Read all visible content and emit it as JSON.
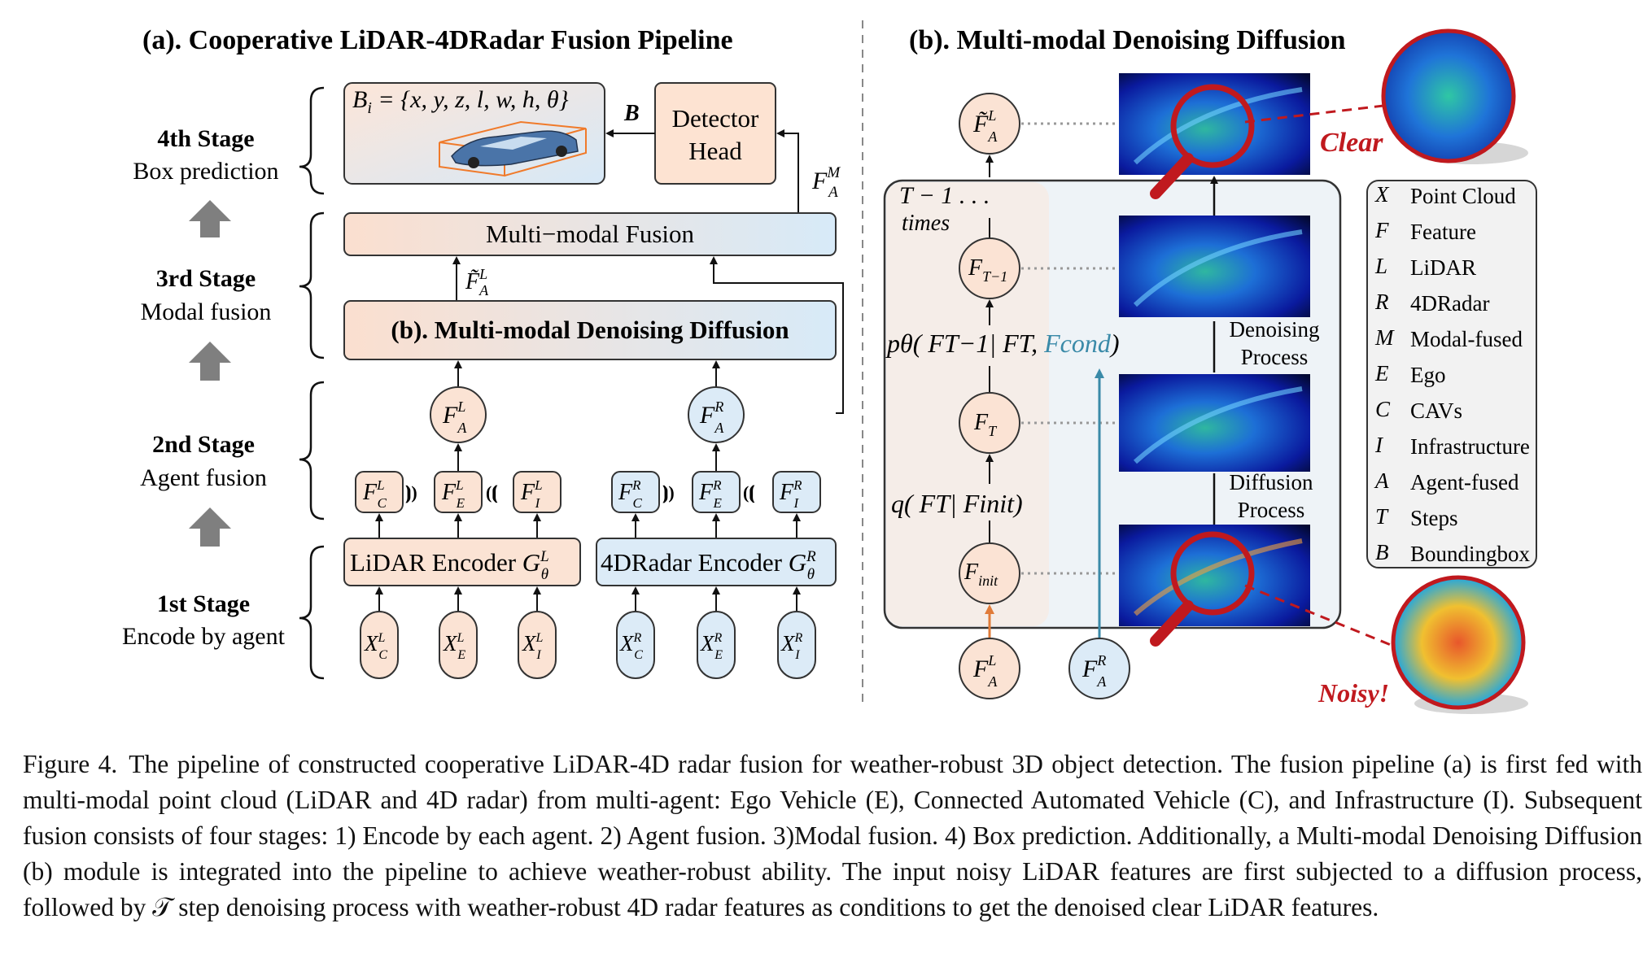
{
  "panel_a": {
    "title": "(a). Cooperative LiDAR-4DRadar Fusion Pipeline",
    "stages": [
      {
        "name": "4th Stage",
        "desc": "Box prediction"
      },
      {
        "name": "3rd Stage",
        "desc": "Modal fusion"
      },
      {
        "name": "2nd Stage",
        "desc": "Agent fusion"
      },
      {
        "name": "1st Stage",
        "desc": "Encode by agent"
      }
    ],
    "box_formula": "B",
    "box_formula_sub": "i",
    "box_formula_rest": " = {x, y, z, l, w, h, θ}",
    "box_arrow_label": "B",
    "detector_head_line1": "Detector",
    "detector_head_line2": "Head",
    "fused_label": "F",
    "fused_sup": "M",
    "fused_sub": "A",
    "multimodal_fusion": "Multi−modal Fusion",
    "diffusion_module": "(b). Multi-modal Denoising Diffusion",
    "lidar_encoder": "LiDAR Encoder ",
    "radar_encoder": "4DRadar Encoder ",
    "encoder_sym": "G",
    "encoder_sub": "θ"
  },
  "panel_b": {
    "title": "(b). Multi-modal Denoising Diffusion",
    "loop_label_1": "T − 1 . . .",
    "loop_label_2": "times",
    "p_theta": "pθ( FT−1| FT, ",
    "p_cond": "Fcond",
    "p_close": ")",
    "q_label": "q( FT| Finit)",
    "denoising_1": "Denoising",
    "denoising_2": "Process",
    "diffusion_1": "Diffusion",
    "diffusion_2": "Process",
    "clear": "Clear",
    "noisy": "Noisy!"
  },
  "legend": [
    {
      "sym": "X",
      "text": "Point Cloud"
    },
    {
      "sym": "F",
      "text": "Feature"
    },
    {
      "sym": "L",
      "text": "LiDAR"
    },
    {
      "sym": "R",
      "text": "4DRadar"
    },
    {
      "sym": "M",
      "text": "Modal-fused"
    },
    {
      "sym": "E",
      "text": "Ego"
    },
    {
      "sym": "C",
      "text": "CAVs"
    },
    {
      "sym": "I",
      "text": "Infrastructure"
    },
    {
      "sym": "A",
      "text": "Agent-fused"
    },
    {
      "sym": "T",
      "text": "Steps"
    },
    {
      "sym": "B",
      "text": "Boundingbox"
    }
  ],
  "caption": {
    "label": "Figure 4.",
    "text": "The pipeline of constructed cooperative LiDAR-4D radar fusion for weather-robust 3D object detection. The fusion pipeline (a) is first fed with multi-modal point cloud (LiDAR and 4D radar) from multi-agent: Ego Vehicle (E), Connected Automated Vehicle (C), and Infrastructure (I). Subsequent fusion consists of four stages: 1) Encode by each agent. 2) Agent fusion. 3)Modal fusion. 4) Box prediction. Additionally, a Multi-modal Denoising Diffusion (b) module is integrated into the pipeline to achieve weather-robust ability. The input noisy LiDAR features are first subjected to a diffusion process, followed by 𝒯 step denoising process with weather-robust 4D radar features as conditions to get the denoised clear LiDAR features."
  },
  "colors": {
    "lidar_fill": "#fbe3d4",
    "radar_fill": "#dcebf7",
    "teal_arrow": "#3a8aa8",
    "orange_arrow": "#e07b39",
    "red_accent": "#c0191e",
    "gray_arrow": "#7f7f7f"
  }
}
